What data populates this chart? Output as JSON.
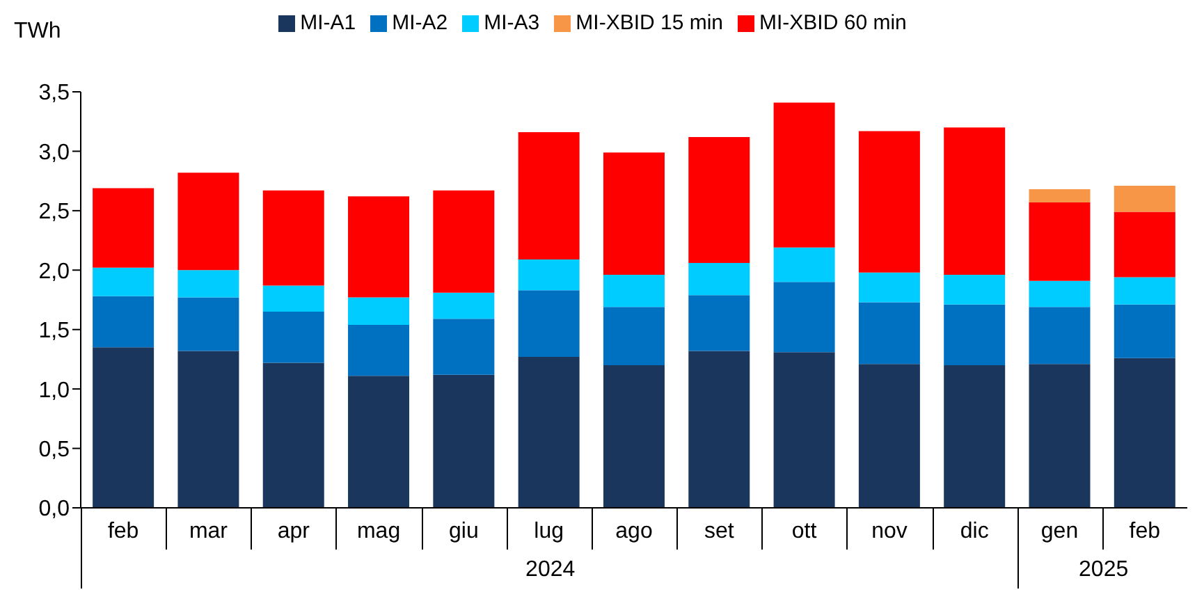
{
  "chart_data": {
    "type": "bar",
    "stacked": true,
    "ylabel": "TWh",
    "legend": "top",
    "categories": [
      "feb",
      "mar",
      "apr",
      "mag",
      "giu",
      "lug",
      "ago",
      "set",
      "ott",
      "nov",
      "dic",
      "gen",
      "feb"
    ],
    "series": [
      {
        "name": "MI-A1",
        "color": "#1b365d",
        "values": [
          1.35,
          1.32,
          1.22,
          1.11,
          1.12,
          1.27,
          1.2,
          1.32,
          1.31,
          1.21,
          1.2,
          1.21,
          1.26
        ]
      },
      {
        "name": "MI-A2",
        "color": "#0070c0",
        "values": [
          0.43,
          0.45,
          0.43,
          0.43,
          0.47,
          0.56,
          0.49,
          0.47,
          0.59,
          0.52,
          0.51,
          0.48,
          0.45
        ]
      },
      {
        "name": "MI-A3",
        "color": "#00ccff",
        "values": [
          0.24,
          0.23,
          0.22,
          0.23,
          0.22,
          0.26,
          0.27,
          0.27,
          0.29,
          0.25,
          0.25,
          0.22,
          0.23
        ]
      },
      {
        "name": "MI-XBID 60 min",
        "color": "#ff0000",
        "values": [
          0.67,
          0.82,
          0.8,
          0.85,
          0.86,
          1.07,
          1.03,
          1.06,
          1.22,
          1.19,
          1.24,
          0.66,
          0.55
        ]
      },
      {
        "name": "MI-XBID 15 min",
        "color": "#f79646",
        "values": [
          null,
          null,
          null,
          null,
          null,
          null,
          null,
          null,
          null,
          null,
          null,
          0.11,
          0.22
        ]
      }
    ],
    "ylim": [
      0,
      3.5
    ],
    "yticks": [
      {
        "value": 0,
        "label": "0,0"
      },
      {
        "value": 0.5,
        "label": "0,5"
      },
      {
        "value": 1,
        "label": "1,0"
      },
      {
        "value": 1.5,
        "label": "1,5"
      },
      {
        "value": 2,
        "label": "2,0"
      },
      {
        "value": 2.5,
        "label": "2,5"
      },
      {
        "value": 3,
        "label": "3,0"
      },
      {
        "value": 3.5,
        "label": "3,5"
      }
    ],
    "annotations": [
      "2024",
      "2025"
    ]
  }
}
